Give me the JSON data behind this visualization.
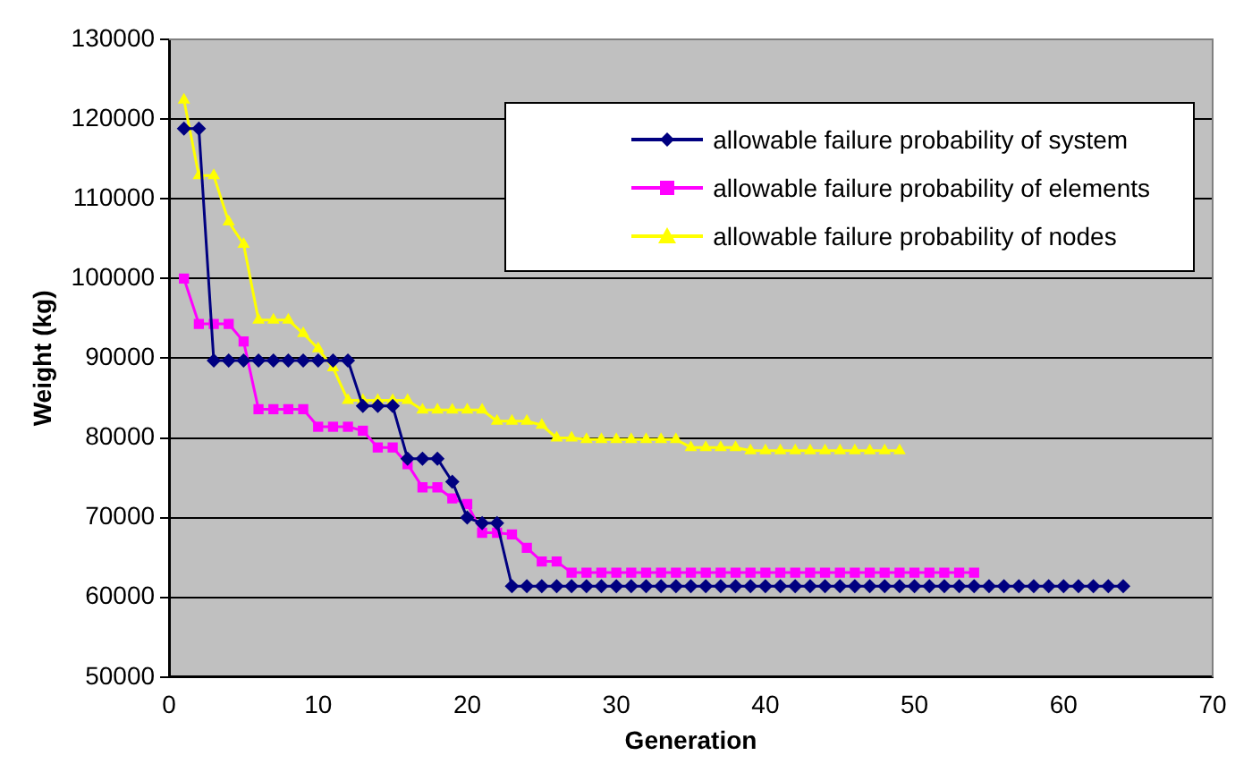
{
  "chart_data": {
    "type": "line",
    "xlabel": "Generation",
    "ylabel": "Weight (kg)",
    "xlim": [
      0,
      70
    ],
    "xticks": [
      0,
      10,
      20,
      30,
      40,
      50,
      60,
      70
    ],
    "ylim": [
      50000,
      130000
    ],
    "yticks": [
      50000,
      60000,
      70000,
      80000,
      90000,
      100000,
      110000,
      120000,
      130000
    ],
    "grid": "y",
    "legend": "top right",
    "line_style": "solid",
    "series": [
      {
        "name": "allowable failure probability of system",
        "color": "#000080",
        "marker": "diamond",
        "x": [
          1,
          2,
          3,
          4,
          5,
          6,
          7,
          8,
          9,
          10,
          11,
          12,
          13,
          14,
          15,
          16,
          17,
          18,
          19,
          20,
          21,
          22,
          23,
          24,
          25,
          26,
          27,
          28,
          29,
          30,
          31,
          32,
          33,
          34,
          35,
          36,
          37,
          38,
          39,
          40,
          41,
          42,
          43,
          44,
          45,
          46,
          47,
          48,
          49,
          50,
          51,
          52,
          53,
          54,
          55,
          56,
          57,
          58,
          59,
          60,
          61,
          62,
          63,
          64
        ],
        "values": [
          118800,
          118800,
          89700,
          89700,
          89700,
          89700,
          89700,
          89700,
          89700,
          89700,
          89700,
          89700,
          84000,
          84000,
          84000,
          77400,
          77400,
          77400,
          74500,
          70000,
          69300,
          69300,
          61400,
          61400,
          61400,
          61400,
          61400,
          61400,
          61400,
          61400,
          61400,
          61400,
          61400,
          61400,
          61400,
          61400,
          61400,
          61400,
          61400,
          61400,
          61400,
          61400,
          61400,
          61400,
          61400,
          61400,
          61400,
          61400,
          61400,
          61400,
          61400,
          61400,
          61400,
          61400,
          61400,
          61400,
          61400,
          61400,
          61400,
          61400,
          61400,
          61400,
          61400,
          61400
        ]
      },
      {
        "name": "allowable failure probability of elements",
        "color": "#ff00ff",
        "marker": "square",
        "x": [
          1,
          2,
          3,
          4,
          5,
          6,
          7,
          8,
          9,
          10,
          11,
          12,
          13,
          14,
          15,
          16,
          17,
          18,
          19,
          20,
          21,
          22,
          23,
          24,
          25,
          26,
          27,
          28,
          29,
          30,
          31,
          32,
          33,
          34,
          35,
          36,
          37,
          38,
          39,
          40,
          41,
          42,
          43,
          44,
          45,
          46,
          47,
          48,
          49,
          50,
          51,
          52,
          53,
          54
        ],
        "values": [
          100000,
          94300,
          94300,
          94300,
          92100,
          83600,
          83600,
          83600,
          83600,
          81400,
          81400,
          81400,
          80900,
          78800,
          78800,
          76700,
          73800,
          73800,
          72400,
          71700,
          68100,
          68100,
          67900,
          66200,
          64500,
          64500,
          63100,
          63100,
          63100,
          63100,
          63100,
          63100,
          63100,
          63100,
          63100,
          63100,
          63100,
          63100,
          63100,
          63100,
          63100,
          63100,
          63100,
          63100,
          63100,
          63100,
          63100,
          63100,
          63100,
          63100,
          63100,
          63100,
          63100,
          63100
        ]
      },
      {
        "name": "allowable failure probability of nodes",
        "color": "#ffff00",
        "marker": "triangle",
        "x": [
          1,
          2,
          3,
          4,
          5,
          6,
          7,
          8,
          9,
          10,
          11,
          12,
          13,
          14,
          15,
          16,
          17,
          18,
          19,
          20,
          21,
          22,
          23,
          24,
          25,
          26,
          27,
          28,
          29,
          30,
          31,
          32,
          33,
          34,
          35,
          36,
          37,
          38,
          39,
          40,
          41,
          42,
          43,
          44,
          45,
          46,
          47,
          48,
          49
        ],
        "values": [
          122400,
          112900,
          112900,
          107100,
          104300,
          94800,
          94800,
          94800,
          93100,
          91200,
          88800,
          84700,
          84700,
          84700,
          84700,
          84700,
          83500,
          83500,
          83500,
          83500,
          83500,
          82100,
          82100,
          82100,
          81600,
          80000,
          80000,
          79800,
          79800,
          79800,
          79800,
          79800,
          79800,
          79800,
          78800,
          78800,
          78800,
          78800,
          78400,
          78400,
          78400,
          78400,
          78400,
          78400,
          78400,
          78400,
          78400,
          78400,
          78400
        ]
      }
    ]
  }
}
